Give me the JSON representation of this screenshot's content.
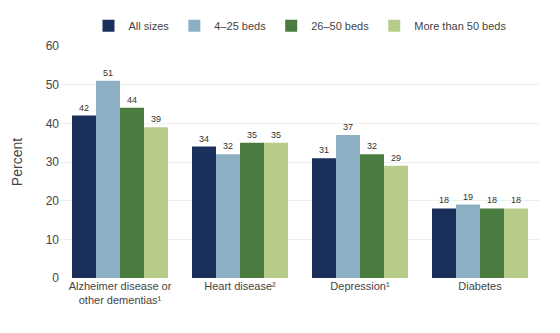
{
  "chart_data": {
    "type": "bar",
    "categories": [
      "Alzheimer disease or\nother dementias¹",
      "Heart disease²",
      "Depression¹",
      "Diabetes"
    ],
    "series": [
      {
        "name": "All sizes",
        "color": "#1a2f5a",
        "values": [
          42,
          34,
          31,
          18
        ]
      },
      {
        "name": "4–25 beds",
        "color": "#8cafc4",
        "values": [
          51,
          32,
          37,
          19
        ]
      },
      {
        "name": "26–50 beds",
        "color": "#4a7c3f",
        "values": [
          44,
          35,
          32,
          18
        ]
      },
      {
        "name": "More than 50 beds",
        "color": "#b8cc8a",
        "values": [
          39,
          35,
          29,
          18
        ]
      }
    ],
    "ylabel": "Percent",
    "ylim": [
      0,
      60
    ],
    "yticks": [
      0,
      10,
      20,
      30,
      40,
      50,
      60
    ],
    "grid": true,
    "legend": "top",
    "data_labels": true
  }
}
